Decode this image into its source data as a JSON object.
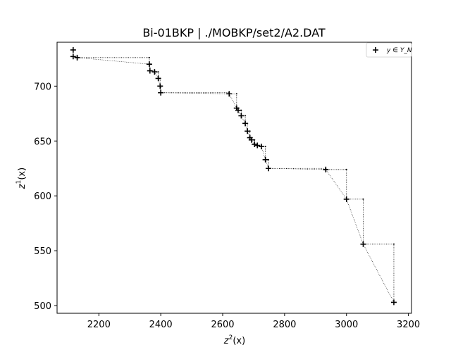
{
  "chart_data": {
    "type": "scatter",
    "title": "Bi-01BKP | ./MOBKP/set2/A2.DAT",
    "xlabel": "z",
    "xlabel_sup": "2",
    "xlabel_tail": "(x)",
    "ylabel": "z",
    "ylabel_sup": "1",
    "ylabel_tail": "(x)",
    "xlim": [
      2065,
      3210
    ],
    "ylim": [
      493,
      740
    ],
    "xticks": [
      2200,
      2400,
      2600,
      2800,
      3000,
      3200
    ],
    "yticks": [
      500,
      550,
      600,
      650,
      700
    ],
    "grid": false,
    "legend": {
      "position": "top-right",
      "marker": "+",
      "label": "y ∈ Y_N"
    },
    "series": [
      {
        "marker": "+",
        "points": [
          [
            2117,
            733
          ],
          [
            2117,
            727
          ],
          [
            2130,
            726
          ],
          [
            2363,
            720
          ],
          [
            2365,
            714
          ],
          [
            2380,
            713
          ],
          [
            2392,
            707
          ],
          [
            2398,
            700
          ],
          [
            2400,
            694
          ],
          [
            2621,
            693
          ],
          [
            2645,
            680
          ],
          [
            2650,
            678
          ],
          [
            2660,
            673
          ],
          [
            2673,
            666
          ],
          [
            2680,
            659
          ],
          [
            2688,
            653
          ],
          [
            2693,
            651
          ],
          [
            2703,
            647
          ],
          [
            2712,
            646
          ],
          [
            2725,
            645
          ],
          [
            2738,
            633
          ],
          [
            2748,
            625
          ],
          [
            2933,
            624
          ],
          [
            3000,
            597
          ],
          [
            3054,
            556
          ],
          [
            3153,
            503
          ]
        ]
      }
    ],
    "staircase_style": "dotted"
  }
}
